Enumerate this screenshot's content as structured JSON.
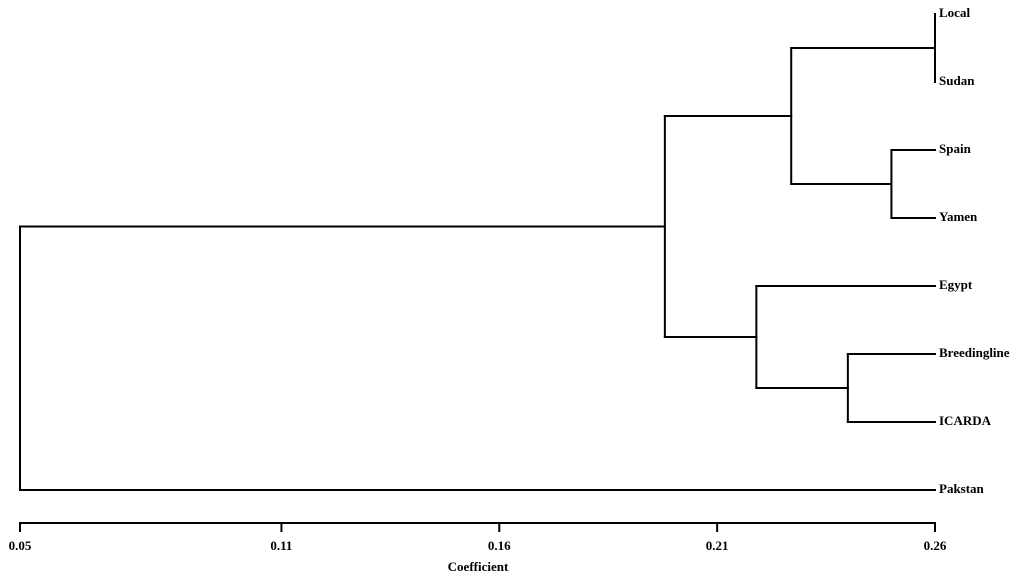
{
  "chart_data": {
    "type": "dendrogram",
    "x_label": "Coefficient",
    "xlim": [
      0.05,
      0.26
    ],
    "xticks": [
      0.05,
      0.11,
      0.16,
      0.21,
      0.26
    ],
    "color": "#000000",
    "tree": {
      "height": 0.05,
      "children": [
        {
          "height": 0.198,
          "children": [
            {
              "height": 0.227,
              "children": [
                {
                  "height": 0.26,
                  "children": [
                    {
                      "label": "Local"
                    },
                    {
                      "label": "Sudan"
                    }
                  ]
                },
                {
                  "height": 0.25,
                  "children": [
                    {
                      "label": "Spain"
                    },
                    {
                      "label": "Yamen"
                    }
                  ]
                }
              ]
            },
            {
              "height": 0.219,
              "children": [
                {
                  "label": "Egypt"
                },
                {
                  "height": 0.24,
                  "children": [
                    {
                      "label": "Breedingline"
                    },
                    {
                      "label": "ICARDA"
                    }
                  ]
                }
              ]
            }
          ]
        },
        {
          "label": "Pakstan"
        }
      ]
    }
  }
}
